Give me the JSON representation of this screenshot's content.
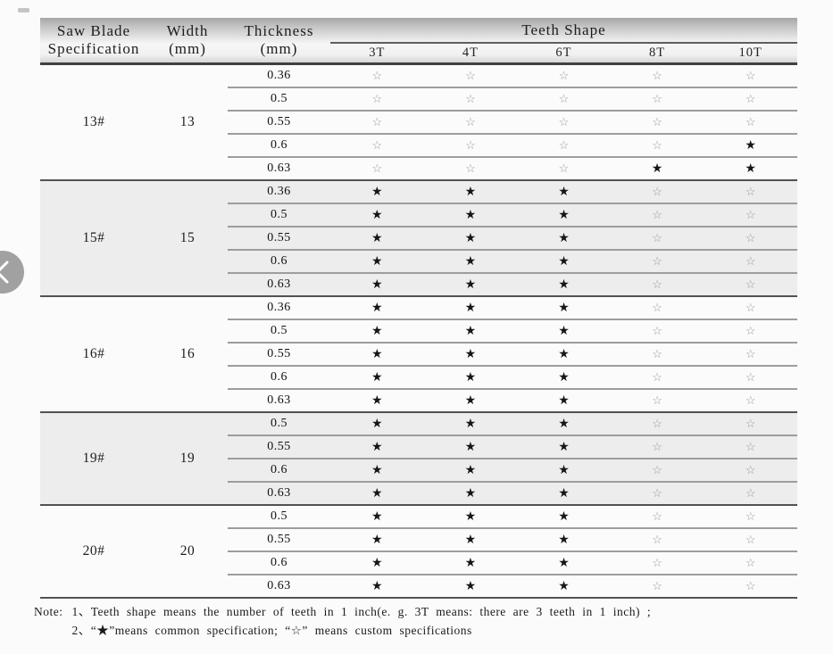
{
  "page": {
    "background": "#fbfbfb"
  },
  "nav": {
    "prev_button": "previous"
  },
  "table": {
    "header": {
      "spec_line1": "Saw Blade",
      "spec_line2": "Specification",
      "width_line1": "Width",
      "width_line2": "(mm)",
      "thickness_line1": "Thickness",
      "thickness_line2": "(mm)",
      "teeth_title": "Teeth Shape",
      "teeth_cols": [
        "3T",
        "4T",
        "6T",
        "8T",
        "10T"
      ]
    },
    "symbols": {
      "common": "★",
      "custom": "☆"
    },
    "colors": {
      "star_common": "#161616",
      "star_custom": "#9a9a9a",
      "band_shade": "#ededed"
    },
    "groups": [
      {
        "spec": "13#",
        "width": "13",
        "shaded": false,
        "rows": [
          {
            "thickness": "0.36",
            "teeth": [
              "custom",
              "custom",
              "custom",
              "custom",
              "custom"
            ]
          },
          {
            "thickness": "0.5",
            "teeth": [
              "custom",
              "custom",
              "custom",
              "custom",
              "custom"
            ]
          },
          {
            "thickness": "0.55",
            "teeth": [
              "custom",
              "custom",
              "custom",
              "custom",
              "custom"
            ]
          },
          {
            "thickness": "0.6",
            "teeth": [
              "custom",
              "custom",
              "custom",
              "custom",
              "common"
            ]
          },
          {
            "thickness": "0.63",
            "teeth": [
              "custom",
              "custom",
              "custom",
              "common",
              "common"
            ]
          }
        ]
      },
      {
        "spec": "15#",
        "width": "15",
        "shaded": true,
        "rows": [
          {
            "thickness": "0.36",
            "teeth": [
              "common",
              "common",
              "common",
              "custom",
              "custom"
            ]
          },
          {
            "thickness": "0.5",
            "teeth": [
              "common",
              "common",
              "common",
              "custom",
              "custom"
            ]
          },
          {
            "thickness": "0.55",
            "teeth": [
              "common",
              "common",
              "common",
              "custom",
              "custom"
            ]
          },
          {
            "thickness": "0.6",
            "teeth": [
              "common",
              "common",
              "common",
              "custom",
              "custom"
            ]
          },
          {
            "thickness": "0.63",
            "teeth": [
              "common",
              "common",
              "common",
              "custom",
              "custom"
            ]
          }
        ]
      },
      {
        "spec": "16#",
        "width": "16",
        "shaded": false,
        "rows": [
          {
            "thickness": "0.36",
            "teeth": [
              "common",
              "common",
              "common",
              "custom",
              "custom"
            ]
          },
          {
            "thickness": "0.5",
            "teeth": [
              "common",
              "common",
              "common",
              "custom",
              "custom"
            ]
          },
          {
            "thickness": "0.55",
            "teeth": [
              "common",
              "common",
              "common",
              "custom",
              "custom"
            ]
          },
          {
            "thickness": "0.6",
            "teeth": [
              "common",
              "common",
              "common",
              "custom",
              "custom"
            ]
          },
          {
            "thickness": "0.63",
            "teeth": [
              "common",
              "common",
              "common",
              "custom",
              "custom"
            ]
          }
        ]
      },
      {
        "spec": "19#",
        "width": "19",
        "shaded": true,
        "rows": [
          {
            "thickness": "0.5",
            "teeth": [
              "common",
              "common",
              "common",
              "custom",
              "custom"
            ]
          },
          {
            "thickness": "0.55",
            "teeth": [
              "common",
              "common",
              "common",
              "custom",
              "custom"
            ]
          },
          {
            "thickness": "0.6",
            "teeth": [
              "common",
              "common",
              "common",
              "custom",
              "custom"
            ]
          },
          {
            "thickness": "0.63",
            "teeth": [
              "common",
              "common",
              "common",
              "custom",
              "custom"
            ]
          }
        ]
      },
      {
        "spec": "20#",
        "width": "20",
        "shaded": false,
        "rows": [
          {
            "thickness": "0.5",
            "teeth": [
              "common",
              "common",
              "common",
              "custom",
              "custom"
            ]
          },
          {
            "thickness": "0.55",
            "teeth": [
              "common",
              "common",
              "common",
              "custom",
              "custom"
            ]
          },
          {
            "thickness": "0.6",
            "teeth": [
              "common",
              "common",
              "common",
              "custom",
              "custom"
            ]
          },
          {
            "thickness": "0.63",
            "teeth": [
              "common",
              "common",
              "common",
              "custom",
              "custom"
            ]
          }
        ]
      }
    ]
  },
  "note": {
    "label": "Note:",
    "item1": "1、Teeth shape means the number of teeth in 1 inch(e. g.  3T   means: there are 3 teeth in 1 inch) ;",
    "item2": "2、“★”means common specification;  “☆”  means custom specifications"
  }
}
